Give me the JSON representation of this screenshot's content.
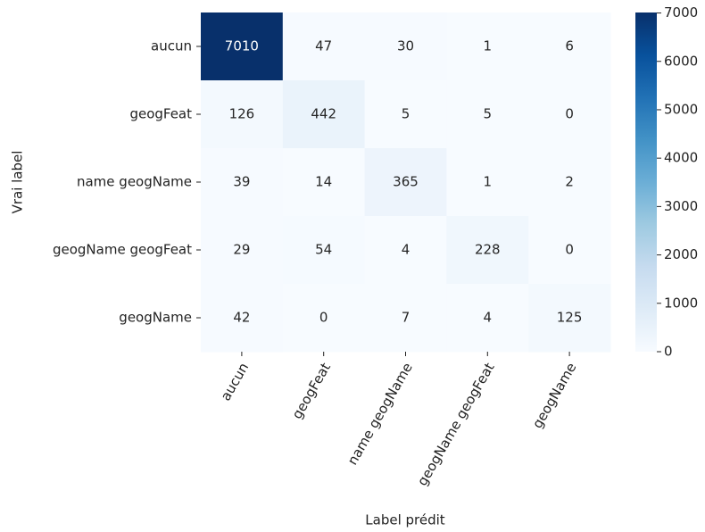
{
  "chart_data": {
    "type": "heatmap",
    "x_categories": [
      "aucun",
      "geogFeat",
      "name geogName",
      "geogName geogFeat",
      "geogName"
    ],
    "y_categories": [
      "aucun",
      "geogFeat",
      "name geogName",
      "geogName geogFeat",
      "geogName"
    ],
    "values": [
      [
        7010,
        47,
        30,
        1,
        6
      ],
      [
        126,
        442,
        5,
        5,
        0
      ],
      [
        39,
        14,
        365,
        1,
        2
      ],
      [
        29,
        54,
        4,
        228,
        0
      ],
      [
        42,
        0,
        7,
        4,
        125
      ]
    ],
    "xlabel": "Label prédit",
    "ylabel": "Vrai label",
    "colormap": "Blues",
    "zlim": [
      0,
      7010
    ],
    "zticks": [
      0,
      1000,
      2000,
      3000,
      4000,
      5000,
      6000,
      7000
    ]
  }
}
